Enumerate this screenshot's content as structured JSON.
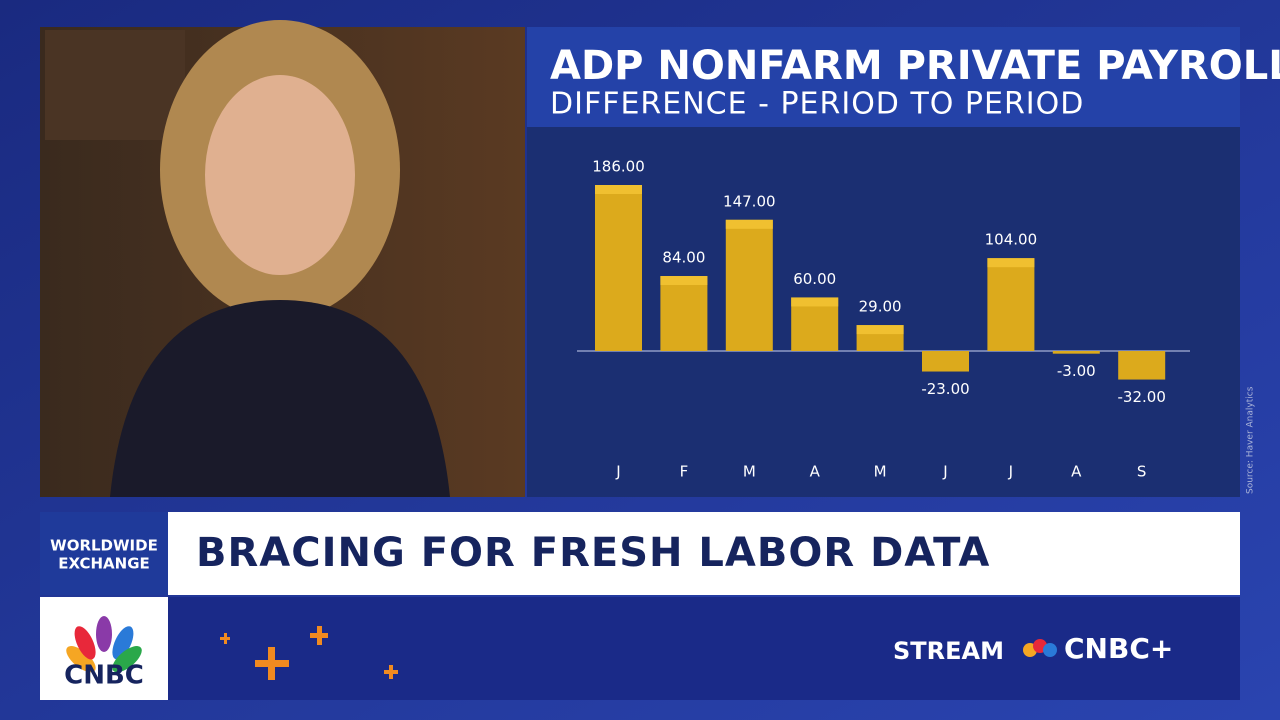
{
  "chart_data": {
    "type": "bar",
    "title": "ADP NONFARM PRIVATE PAYROLLS",
    "subtitle": "DIFFERENCE - PERIOD TO PERIOD",
    "categories": [
      "J",
      "F",
      "M",
      "A",
      "M",
      "J",
      "J",
      "A",
      "S"
    ],
    "values": [
      186,
      84,
      147,
      60,
      29,
      -23,
      104,
      -3,
      -32
    ],
    "value_labels": [
      "186.00",
      "84.00",
      "147.00",
      "60.00",
      "29.00",
      "-23.00",
      "104.00",
      "-3.00",
      "-32.00"
    ],
    "color": "#dcaa1c",
    "source": "Source: Haver Analytics"
  },
  "banner": {
    "show": [
      "WORLDWIDE",
      "EXCHANGE"
    ],
    "headline": "BRACING FOR FRESH LABOR DATA"
  },
  "logo": "CNBC",
  "stream": {
    "label": "STREAM",
    "brand": "CNBC+"
  }
}
